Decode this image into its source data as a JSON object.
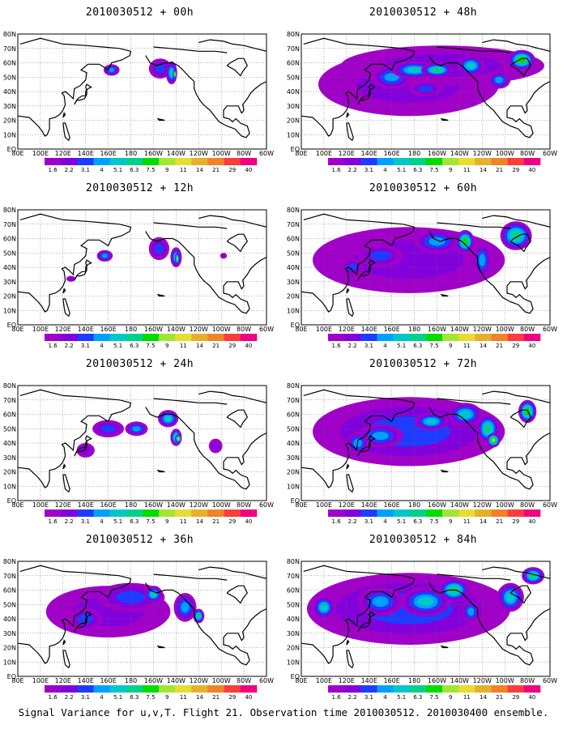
{
  "caption": "Signal Variance for u,v,T. Flight 21. Observation time 2010030512. 2010030400 ensemble.",
  "colorbar": {
    "labels": [
      "1.6",
      "2.2",
      "3.1",
      "4",
      "5.1",
      "6.3",
      "7.5",
      "9",
      "11",
      "14",
      "21",
      "29",
      "40"
    ],
    "colors": [
      "#a000c8",
      "#8200dc",
      "#1e3cff",
      "#00a0ff",
      "#00c8c8",
      "#00d28c",
      "#00dc00",
      "#a0e632",
      "#e6dc32",
      "#e6af2d",
      "#f08228",
      "#fa3c3c",
      "#f00082"
    ]
  },
  "axes": {
    "x_ticks": [
      "80E",
      "100E",
      "120E",
      "140E",
      "160E",
      "180",
      "160W",
      "140W",
      "120W",
      "100W",
      "80W",
      "60W"
    ],
    "y_ticks": [
      "80N",
      "70N",
      "60N",
      "50N",
      "40N",
      "30N",
      "20N",
      "10N",
      "EQ"
    ]
  },
  "chart_data": [
    {
      "type": "heatmap",
      "title": "2010030512 + 00h",
      "lead_hours": 0,
      "intensity": "low"
    },
    {
      "type": "heatmap",
      "title": "2010030512 + 48h",
      "lead_hours": 48,
      "intensity": "high"
    },
    {
      "type": "heatmap",
      "title": "2010030512 + 12h",
      "lead_hours": 12,
      "intensity": "low"
    },
    {
      "type": "heatmap",
      "title": "2010030512 + 60h",
      "lead_hours": 60,
      "intensity": "high"
    },
    {
      "type": "heatmap",
      "title": "2010030512 + 24h",
      "lead_hours": 24,
      "intensity": "medium"
    },
    {
      "type": "heatmap",
      "title": "2010030512 + 72h",
      "lead_hours": 72,
      "intensity": "high"
    },
    {
      "type": "heatmap",
      "title": "2010030512 + 36h",
      "lead_hours": 36,
      "intensity": "medium"
    },
    {
      "type": "heatmap",
      "title": "2010030512 + 84h",
      "lead_hours": 84,
      "intensity": "high"
    }
  ]
}
